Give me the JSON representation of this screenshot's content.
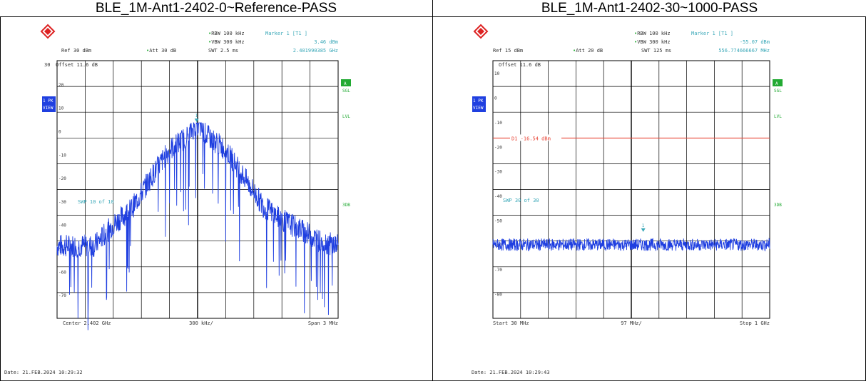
{
  "colors": {
    "trace": "#1f3fe0",
    "header_text": "#3aa8b8",
    "limit": "#e8483a",
    "badge": "#22aa33",
    "sidebar": "#1f3fe0"
  },
  "panels": [
    {
      "title": "BLE_1M-Ant1-2402-0~Reference-PASS",
      "logo_icon": "rohde-schwarz-logo-icon",
      "rbw": "RBW 100 kHz",
      "vbw": "VBW 300 kHz",
      "swt": "SWT 2.5 ms",
      "marker": "Marker 1 [T1 ]",
      "marker_level": "3.46 dBm",
      "marker_freq": "2.401990385 GHz",
      "ref": "Ref  30 dBm",
      "att": "Att  30 dB",
      "offset": "Offset  11.6 dB",
      "top_tick": "30",
      "y_ticks": [
        "20",
        "10",
        "0",
        "-10",
        "-20",
        "-30",
        "-40",
        "-50",
        "-60",
        "-70"
      ],
      "sweep_note": "SWP    10 of   10",
      "badge": "A",
      "badge_sub": "SGL",
      "side_left_1": "1 PK",
      "side_left_2": "VIEW",
      "side_right_1": "LVL",
      "side_right_2": "3DB",
      "marker_label": "1",
      "bottom_left": "Center  2.402 GHz",
      "bottom_mid": "300 kHz/",
      "bottom_right": "Span  3 MHz",
      "date": "Date: 21.FEB.2024  10:29:32"
    },
    {
      "title": "BLE_1M-Ant1-2402-30~1000-PASS",
      "logo_icon": "rohde-schwarz-logo-icon",
      "rbw": "RBW 100 kHz",
      "vbw": "VBW 300 kHz",
      "swt": "SWT 125 ms",
      "marker": "Marker 1 [T1 ]",
      "marker_level": "-55.07 dBm",
      "marker_freq": "556.774666667 MHz",
      "ref": "Ref  15 dBm",
      "att": "Att  20 dB",
      "offset": "Offset  11.6 dB",
      "top_tick": "",
      "y_ticks": [
        "10",
        "0",
        "-10",
        "-20",
        "-30",
        "-40",
        "-50",
        "-60",
        "-70",
        "-80"
      ],
      "limit_label": "D1 -16.54 dBm",
      "sweep_note": "SWP    30 of   30",
      "badge": "A",
      "badge_sub": "SGL",
      "side_left_1": "1 PK",
      "side_left_2": "VIEW",
      "side_right_1": "LVL",
      "side_right_2": "3DB",
      "marker_label": "1",
      "bottom_left": "Start  30 MHz",
      "bottom_mid": "97 MHz/",
      "bottom_right": "Stop  1 GHz",
      "date": "Date: 21.FEB.2024  10:29:43"
    }
  ],
  "chart_data": [
    {
      "type": "line",
      "title": "BLE_1M-Ant1-2402-0~Reference-PASS",
      "xlabel": "",
      "ylabel": "",
      "x_unit": "GHz",
      "y_unit": "dBm",
      "xlim": [
        2.4005,
        2.4035
      ],
      "ylim": [
        -80,
        30
      ],
      "grid": true,
      "series": [
        {
          "values_x": [
            2.4005,
            2.4009,
            2.4011,
            2.4013,
            2.4015,
            2.4017,
            2.4019,
            2.40199,
            2.4021,
            2.4023,
            2.4025,
            2.4027,
            2.4029,
            2.4031,
            2.4033,
            2.4035
          ],
          "values_y": [
            -49,
            -49,
            -40,
            -33,
            -20,
            -8,
            -2,
            3.46,
            -2,
            -8,
            -20,
            -32,
            -38,
            -42,
            -47,
            -49
          ]
        }
      ],
      "marker": {
        "x": 2.40199,
        "y": 3.46,
        "label": "1"
      }
    },
    {
      "type": "line",
      "title": "BLE_1M-Ant1-2402-30~1000-PASS",
      "xlabel": "",
      "ylabel": "",
      "x_unit": "MHz",
      "y_unit": "dBm",
      "xlim": [
        30,
        1000
      ],
      "ylim": [
        -90,
        15
      ],
      "grid": true,
      "series": [
        {
          "values_x": [
            30,
            127,
            224,
            321,
            418,
            515,
            556.77,
            612,
            709,
            806,
            903,
            1000
          ],
          "values_y": [
            -60,
            -60,
            -60,
            -60,
            -60,
            -60,
            -55.07,
            -60,
            -60,
            -60,
            -60,
            -60
          ]
        }
      ],
      "limit_line": {
        "y": -16.54,
        "label": "D1 -16.54 dBm"
      },
      "marker": {
        "x": 556.77,
        "y": -55.07,
        "label": "1"
      }
    }
  ]
}
